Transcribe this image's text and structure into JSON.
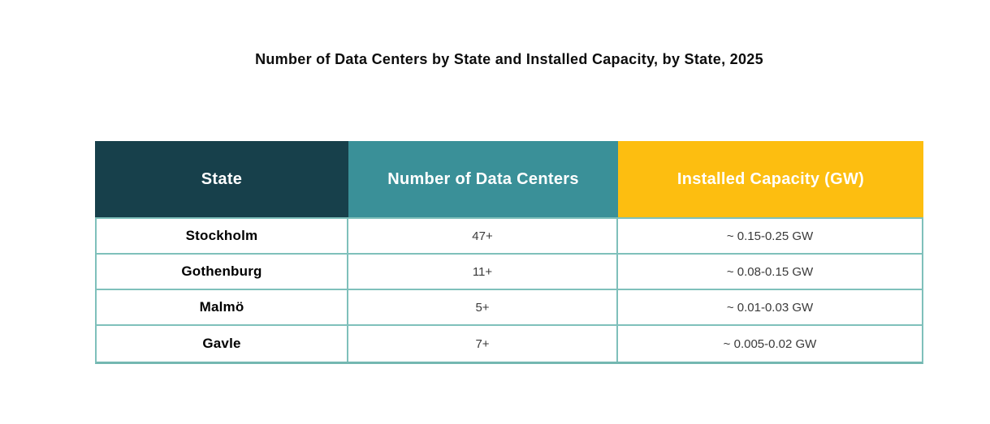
{
  "title": "Number of Data Centers by State and Installed Capacity, by State, 2025",
  "colors": {
    "header_state_bg": "#17404b",
    "header_count_bg": "#3a9098",
    "header_capacity_bg": "#fdbe10",
    "header_text": "#ffffff",
    "table_border": "#7fc0bb",
    "background": "#ffffff"
  },
  "table": {
    "columns": [
      {
        "label": "State"
      },
      {
        "label": "Number of Data Centers"
      },
      {
        "label": "Installed Capacity (GW)"
      }
    ],
    "rows": [
      {
        "state": "Stockholm",
        "count": "47+",
        "capacity": "~ 0.15-0.25 GW"
      },
      {
        "state": "Gothenburg",
        "count": "11+",
        "capacity": "~ 0.08-0.15 GW"
      },
      {
        "state": "Malmö",
        "count": "5+",
        "capacity": "~ 0.01-0.03 GW"
      },
      {
        "state": "Gavle",
        "count": "7+",
        "capacity": "~ 0.005-0.02 GW"
      }
    ]
  },
  "chart_data": {
    "type": "table",
    "title": "Number of Data Centers by State and Installed Capacity, by State, 2025",
    "columns": [
      "State",
      "Number of Data Centers",
      "Installed Capacity (GW)"
    ],
    "rows": [
      [
        "Stockholm",
        "47+",
        "~ 0.15-0.25 GW"
      ],
      [
        "Gothenburg",
        "11+",
        "~ 0.08-0.15 GW"
      ],
      [
        "Malmö",
        "5+",
        "~ 0.01-0.03 GW"
      ],
      [
        "Gavle",
        "7+",
        "~ 0.005-0.02 GW"
      ]
    ]
  }
}
